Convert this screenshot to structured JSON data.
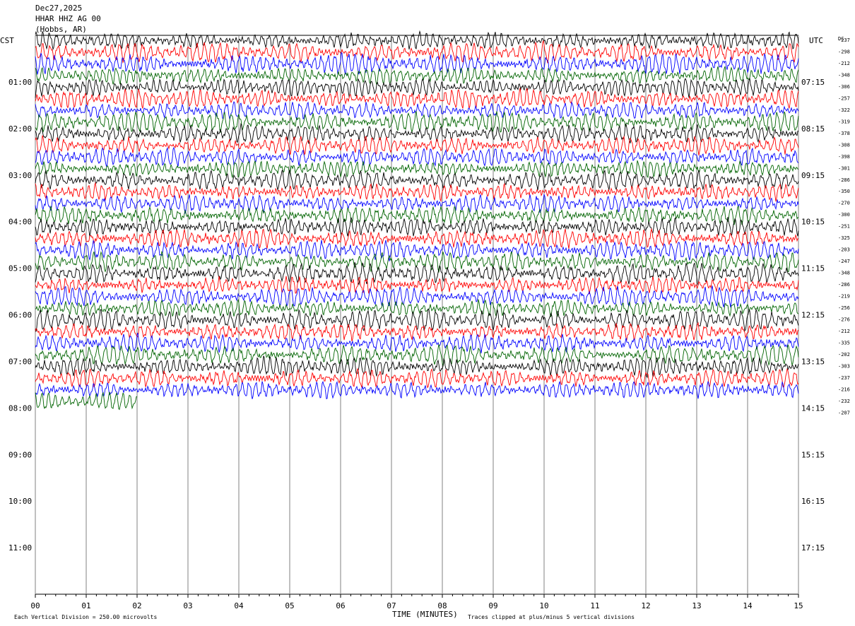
{
  "header": {
    "date": "Dec27,2025",
    "station": "HHAR HHZ AG 00",
    "location": "(Hobbs, AR)"
  },
  "left_label": "CST",
  "right_label": "UTC",
  "dc_label": "DC",
  "footer": {
    "scale_note": "Each Vertical Division =  250.00 microvolts",
    "xlabel": "TIME (MINUTES)",
    "clip_note": "Traces clipped at plus/minus 5 vertical divisions"
  },
  "colors": {
    "trace_cycle": [
      "#000000",
      "#ff0000",
      "#0000ff",
      "#006400"
    ],
    "grid": "#808080"
  },
  "chart_data": {
    "type": "line",
    "subtype": "helicorder",
    "xlabel": "TIME (MINUTES)",
    "xlim": [
      0,
      15
    ],
    "x_ticks": [
      "00",
      "01",
      "02",
      "03",
      "04",
      "05",
      "06",
      "07",
      "08",
      "09",
      "10",
      "11",
      "12",
      "13",
      "14",
      "15"
    ],
    "minutes_per_line": 15,
    "lines_total": 48,
    "lines_with_data": 32,
    "last_line_data_end_minute": 2,
    "cst_labels": [
      "01:00",
      "02:00",
      "03:00",
      "04:00",
      "05:00",
      "06:00",
      "07:00",
      "08:00",
      "09:00",
      "10:00",
      "11:00"
    ],
    "utc_labels": [
      "07:15",
      "08:15",
      "09:15",
      "10:15",
      "11:15",
      "12:15",
      "13:15",
      "14:15",
      "15:15",
      "16:15",
      "17:15"
    ],
    "dc_offsets": [
      -237,
      -298,
      -212,
      -348,
      -306,
      -257,
      -322,
      -319,
      -378,
      -308,
      -398,
      -301,
      -286,
      -350,
      -270,
      -300,
      -251,
      -325,
      -203,
      -247,
      -348,
      -286,
      -219,
      -256,
      -276,
      -212,
      -335,
      -202,
      -303,
      -237,
      -216,
      -232,
      -207
    ],
    "trace_colors": [
      "black",
      "red",
      "blue",
      "green"
    ],
    "clip_divisions": 5,
    "microvolts_per_division": 250.0
  }
}
